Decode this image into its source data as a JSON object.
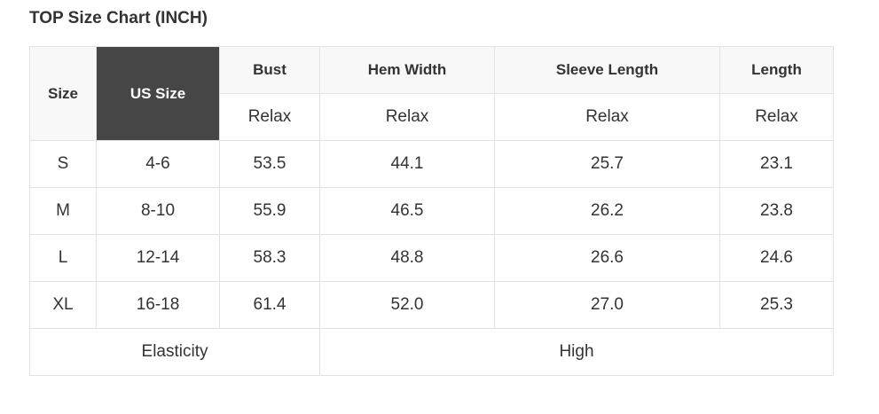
{
  "title": "TOP Size Chart (INCH)",
  "headers": {
    "size": "Size",
    "us_size": "US Size",
    "cols": [
      "Bust",
      "Hem Width",
      "Sleeve Length",
      "Length"
    ],
    "sub": [
      "Relax",
      "Relax",
      "Relax",
      "Relax"
    ]
  },
  "rows": [
    [
      "S",
      "4-6",
      "53.5",
      "44.1",
      "25.7",
      "23.1"
    ],
    [
      "M",
      "8-10",
      "55.9",
      "46.5",
      "26.2",
      "23.8"
    ],
    [
      "L",
      "12-14",
      "58.3",
      "48.8",
      "26.6",
      "24.6"
    ],
    [
      "XL",
      "16-18",
      "61.4",
      "52.0",
      "27.0",
      "25.3"
    ]
  ],
  "footer": {
    "label": "Elasticity",
    "value": "High"
  },
  "colors": {
    "header_dark": "#464646",
    "header_light": "#f8f8f8",
    "border": "#e2e2e2"
  }
}
